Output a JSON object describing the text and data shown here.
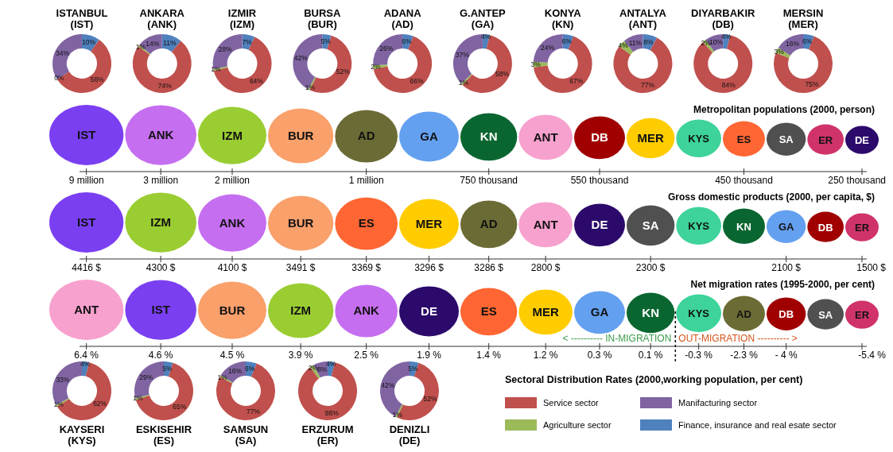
{
  "chart_data": [
    {
      "type": "donut",
      "title": "ISTANBUL (IST)",
      "categories": [
        null,
        null,
        null,
        null
      ],
      "values": [
        10,
        56,
        0,
        34
      ],
      "value_labels": [
        "10%",
        "56%",
        "0%",
        "34%"
      ],
      "colors": [
        "#4f81bd",
        "#c0504d",
        "#9bbb59",
        "#8064a2"
      ],
      "legend": false
    },
    {
      "type": "donut",
      "title": "ANKARA (ANK)",
      "categories": [
        null,
        null,
        null,
        null
      ],
      "values": [
        11,
        74,
        1,
        14
      ],
      "value_labels": [
        "11%",
        "74%",
        "1%",
        "14%"
      ],
      "colors": [
        "#4f81bd",
        "#c0504d",
        "#9bbb59",
        "#8064a2"
      ],
      "legend": false
    },
    {
      "type": "donut",
      "title": "IZMIR (IZM)",
      "categories": [
        null,
        null,
        null,
        null
      ],
      "values": [
        7,
        64,
        1,
        28
      ],
      "value_labels": [
        "7%",
        "64%",
        "1%",
        "28%"
      ],
      "colors": [
        "#4f81bd",
        "#c0504d",
        "#9bbb59",
        "#8064a2"
      ],
      "legend": false
    },
    {
      "type": "donut",
      "title": "BURSA (BUR)",
      "categories": [
        null,
        null,
        null,
        null
      ],
      "values": [
        5,
        52,
        1,
        42
      ],
      "value_labels": [
        "5%",
        "52%",
        "1%",
        "42%"
      ],
      "colors": [
        "#4f81bd",
        "#c0504d",
        "#9bbb59",
        "#8064a2"
      ],
      "legend": false
    },
    {
      "type": "donut",
      "title": "ADANA (AD)",
      "categories": [
        null,
        null,
        null,
        null
      ],
      "values": [
        6,
        66,
        2,
        26
      ],
      "value_labels": [
        "6%",
        "66%",
        "2%",
        "26%"
      ],
      "colors": [
        "#4f81bd",
        "#c0504d",
        "#9bbb59",
        "#8064a2"
      ],
      "legend": false
    },
    {
      "type": "donut",
      "title": "G.ANTEP (GA)",
      "categories": [
        null,
        null,
        null,
        null
      ],
      "values": [
        4,
        58,
        1,
        37
      ],
      "value_labels": [
        "4%",
        "58%",
        "1%",
        "37%"
      ],
      "colors": [
        "#4f81bd",
        "#c0504d",
        "#9bbb59",
        "#8064a2"
      ],
      "legend": false
    },
    {
      "type": "donut",
      "title": "KONYA (KN)",
      "categories": [
        null,
        null,
        null,
        null
      ],
      "values": [
        6,
        67,
        3,
        24
      ],
      "value_labels": [
        "6%",
        "67%",
        "3%",
        "24%"
      ],
      "colors": [
        "#4f81bd",
        "#c0504d",
        "#9bbb59",
        "#8064a2"
      ],
      "legend": false
    },
    {
      "type": "donut",
      "title": "ANTALYA (ANT)",
      "categories": [
        null,
        null,
        null,
        null
      ],
      "values": [
        8,
        77,
        4,
        11
      ],
      "value_labels": [
        "8%",
        "77%",
        "4%",
        "11%"
      ],
      "colors": [
        "#4f81bd",
        "#c0504d",
        "#9bbb59",
        "#8064a2"
      ],
      "legend": false
    },
    {
      "type": "donut",
      "title": "DIYARBAKIR (DB)",
      "categories": [
        null,
        null,
        null,
        null
      ],
      "values": [
        4,
        84,
        2,
        10
      ],
      "value_labels": [
        "4%",
        "84%",
        "2%",
        "10%"
      ],
      "colors": [
        "#4f81bd",
        "#c0504d",
        "#9bbb59",
        "#8064a2"
      ],
      "legend": false
    },
    {
      "type": "donut",
      "title": "MERSIN (MER)",
      "categories": [
        null,
        null,
        null,
        null
      ],
      "values": [
        6,
        75,
        3,
        16
      ],
      "value_labels": [
        "6%",
        "75%",
        "3%",
        "16%"
      ],
      "colors": [
        "#4f81bd",
        "#c0504d",
        "#9bbb59",
        "#8064a2"
      ],
      "legend": false
    },
    {
      "type": "other",
      "title": "Metropolitan populations (2000, person)",
      "categories": [
        "IST",
        "ANK",
        "IZM",
        "BUR",
        "AD",
        "GA",
        "KN",
        "ANT",
        "DB",
        "MER",
        "KYS",
        "ES",
        "SA",
        "ER",
        "DE"
      ],
      "colors": [
        "#7b3ff2",
        "#c66ef0",
        "#9acd32",
        "#f9a06b",
        "#6b6b35",
        "#64a0f0",
        "#0a6630",
        "#f7a1cf",
        "#a00000",
        "#ffcc00",
        "#3dd39a",
        "#ff6633",
        "#505050",
        "#d0336b",
        "#2c0a6b"
      ],
      "value_labels": [
        "9 million",
        "3 million",
        "2 million",
        null,
        "1 million",
        null,
        "750 thousand",
        null,
        "550 thousand",
        null,
        null,
        "450 thousand",
        null,
        null,
        "250 thousand"
      ]
    },
    {
      "type": "other",
      "title": "Gross domestic products (2000, per capita, $)",
      "categories": [
        "IST",
        "IZM",
        "ANK",
        "BUR",
        "ES",
        "MER",
        "AD",
        "ANT",
        "DE",
        "SA",
        "KYS",
        "KN",
        "GA",
        "DB",
        "ER"
      ],
      "colors": [
        "#7b3ff2",
        "#9acd32",
        "#c66ef0",
        "#f9a06b",
        "#ff6633",
        "#ffcc00",
        "#6b6b35",
        "#f7a1cf",
        "#2c0a6b",
        "#505050",
        "#3dd39a",
        "#0a6630",
        "#64a0f0",
        "#a00000",
        "#d0336b"
      ],
      "value_labels": [
        "4416 $",
        "4300 $",
        "4100 $",
        "3491 $",
        "3369 $",
        "3296 $",
        "3286 $",
        "2800 $",
        null,
        "2300 $",
        null,
        null,
        "2100 $",
        null,
        "1500 $"
      ]
    },
    {
      "type": "other",
      "title": "Net migration rates (1995-2000, per cent)",
      "categories": [
        "ANT",
        "IST",
        "BUR",
        "IZM",
        "ANK",
        "DE",
        "ES",
        "MER",
        "GA",
        "KN",
        "KYS",
        "AD",
        "DB",
        "SA",
        "ER"
      ],
      "colors": [
        "#f7a1cf",
        "#7b3ff2",
        "#f9a06b",
        "#9acd32",
        "#c66ef0",
        "#2c0a6b",
        "#ff6633",
        "#ffcc00",
        "#64a0f0",
        "#0a6630",
        "#3dd39a",
        "#6b6b35",
        "#a00000",
        "#505050",
        "#d0336b"
      ],
      "value_labels": [
        "6.4 %",
        "4.6 %",
        "4.5 %",
        "3.9 %",
        "2.5 %",
        "1.9 %",
        "1.4 %",
        "1.2 %",
        "0.3 %",
        "0.1 %",
        "-0.3 %",
        "-2.3 %",
        "- 4 %",
        null,
        "-5.4 %"
      ],
      "annotations": [
        {
          "text": "< ---------- IN-MIGRATION",
          "x": "KN"
        },
        {
          "text": "OUT-MIGRATION ---------- >",
          "x": "KYS"
        }
      ]
    },
    {
      "type": "donut",
      "title": "KAYSERI (KYS)",
      "categories": [
        null,
        null,
        null,
        null
      ],
      "values": [
        4,
        62,
        1,
        33
      ],
      "value_labels": [
        "4%",
        "62%",
        "1%",
        "33%"
      ],
      "colors": [
        "#4f81bd",
        "#c0504d",
        "#9bbb59",
        "#8064a2"
      ],
      "legend": false
    },
    {
      "type": "donut",
      "title": "ESKISEHIR (ES)",
      "categories": [
        null,
        null,
        null,
        null
      ],
      "values": [
        5,
        65,
        1,
        29
      ],
      "value_labels": [
        "5%",
        "65%",
        "1%",
        "29%"
      ],
      "colors": [
        "#4f81bd",
        "#c0504d",
        "#9bbb59",
        "#8064a2"
      ],
      "legend": false
    },
    {
      "type": "donut",
      "title": "SAMSUN (SA)",
      "categories": [
        null,
        null,
        null,
        null
      ],
      "values": [
        6,
        77,
        1,
        16
      ],
      "value_labels": [
        "6%",
        "77%",
        "1%",
        "16%"
      ],
      "colors": [
        "#4f81bd",
        "#c0504d",
        "#9bbb59",
        "#8064a2"
      ],
      "legend": false
    },
    {
      "type": "donut",
      "title": "ERZURUM (ER)",
      "categories": [
        null,
        null,
        null,
        null
      ],
      "values": [
        4,
        86,
        2,
        8
      ],
      "value_labels": [
        "4%",
        "86%",
        "2%",
        "8%"
      ],
      "colors": [
        "#4f81bd",
        "#c0504d",
        "#9bbb59",
        "#8064a2"
      ],
      "legend": false
    },
    {
      "type": "donut",
      "title": "DENIZLI (DE)",
      "categories": [
        "Finance, insurance and real esate sector",
        "Service sector",
        "Agriculture sector",
        "Manifacturing sector"
      ],
      "values": [
        5,
        52,
        1,
        42
      ],
      "value_labels": [
        "5%",
        "52%",
        "1%",
        "42%"
      ],
      "colors": [
        "#4f81bd",
        "#c0504d",
        "#9bbb59",
        "#8064a2"
      ],
      "legend": "right",
      "legend_title": "Sectoral Distribution Rates (2000,working population, per cent)"
    }
  ]
}
